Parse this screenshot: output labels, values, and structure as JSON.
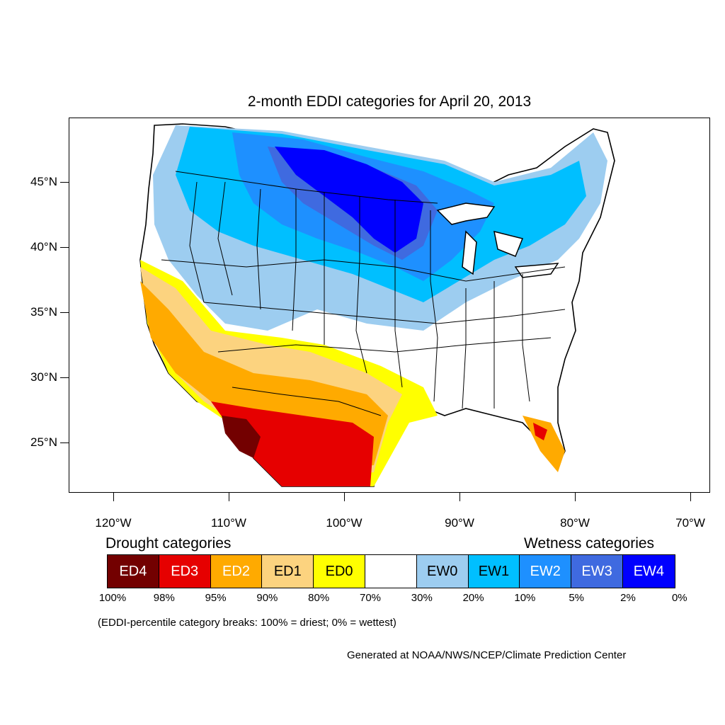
{
  "title": "2-month EDDI categories for April 20, 2013",
  "latitude_labels": [
    "45°N",
    "40°N",
    "35°N",
    "30°N",
    "25°N"
  ],
  "longitude_labels": [
    "120°W",
    "110°W",
    "100°W",
    "90°W",
    "80°W",
    "70°W"
  ],
  "legend": {
    "drought_heading": "Drought categories",
    "wetness_heading": "Wetness categories",
    "categories": [
      {
        "label": "ED4",
        "color": "#730000",
        "text_color": "#ffffff"
      },
      {
        "label": "ED3",
        "color": "#e60000",
        "text_color": "#ffffff"
      },
      {
        "label": "ED2",
        "color": "#ffaa00",
        "text_color": "#ffffff"
      },
      {
        "label": "ED1",
        "color": "#fcd37f",
        "text_color": "#000000"
      },
      {
        "label": "ED0",
        "color": "#ffff00",
        "text_color": "#000000"
      },
      {
        "label": "",
        "color": "#ffffff",
        "text_color": "#000000"
      },
      {
        "label": "EW0",
        "color": "#9dcdf0",
        "text_color": "#000000"
      },
      {
        "label": "EW1",
        "color": "#00bfff",
        "text_color": "#000000"
      },
      {
        "label": "EW2",
        "color": "#1e90ff",
        "text_color": "#ffffff"
      },
      {
        "label": "EW3",
        "color": "#3f6ae0",
        "text_color": "#ffffff"
      },
      {
        "label": "EW4",
        "color": "#0000ff",
        "text_color": "#ffffff"
      }
    ],
    "breaks": [
      "100%",
      "98%",
      "95%",
      "90%",
      "80%",
      "70%",
      "30%",
      "20%",
      "10%",
      "5%",
      "2%",
      "0%"
    ]
  },
  "note": "(EDDI-percentile category breaks: 100% = driest; 0% = wettest)",
  "credit": "Generated at NOAA/NWS/NCEP/Climate Prediction Center"
}
